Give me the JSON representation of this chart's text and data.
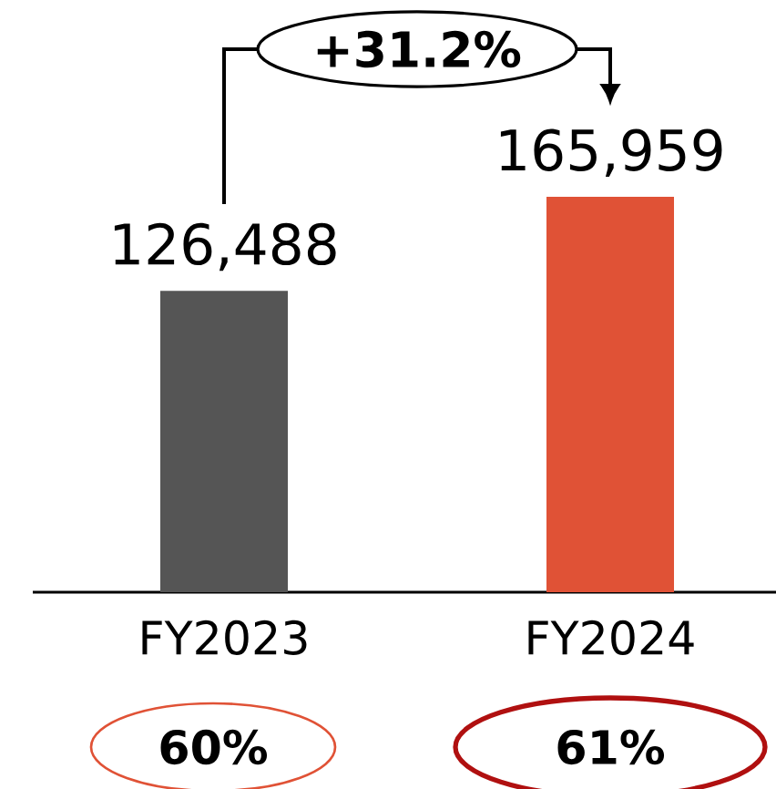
{
  "chart_data": {
    "type": "bar",
    "categories": [
      "FY2023",
      "FY2024"
    ],
    "values": [
      126488,
      165959
    ],
    "colors": [
      "#555555",
      "#e05236"
    ],
    "value_labels": [
      "126,488",
      "165,959"
    ],
    "annotations": [
      "+31.2%",
      "60%",
      "61%"
    ]
  }
}
